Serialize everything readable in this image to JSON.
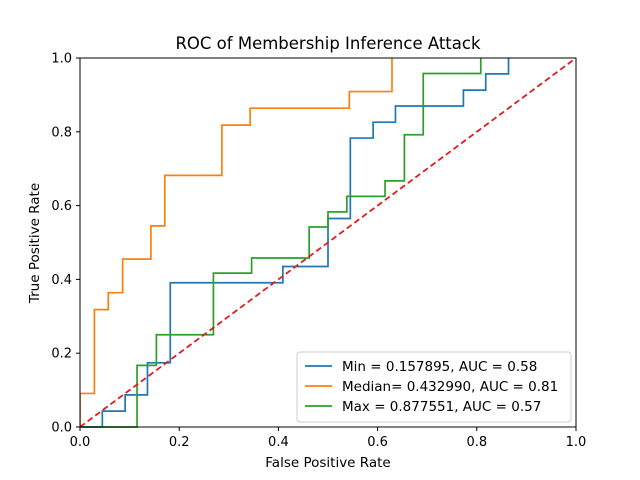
{
  "chart_data": {
    "type": "line",
    "title": "ROC of Membership Inference Attack",
    "xlabel": "False Positive Rate",
    "ylabel": "True Positive Rate",
    "xlim": [
      0.0,
      1.0
    ],
    "ylim": [
      0.0,
      1.0
    ],
    "xticks": [
      "0.0",
      "0.2",
      "0.4",
      "0.6",
      "0.8",
      "1.0"
    ],
    "yticks": [
      "0.0",
      "0.2",
      "0.4",
      "0.6",
      "0.8",
      "1.0"
    ],
    "grid": false,
    "legend_position": "lower-right",
    "series": [
      {
        "name": "Min = 0.157895, AUC = 0.58",
        "color": "#1f77b4",
        "x": [
          0.0,
          0.045,
          0.045,
          0.091,
          0.091,
          0.136,
          0.136,
          0.182,
          0.182,
          0.409,
          0.409,
          0.5,
          0.5,
          0.545,
          0.545,
          0.591,
          0.591,
          0.636,
          0.636,
          0.773,
          0.773,
          0.818,
          0.818,
          0.864,
          0.864
        ],
        "y": [
          0.0,
          0.0,
          0.043,
          0.043,
          0.087,
          0.087,
          0.174,
          0.174,
          0.391,
          0.391,
          0.435,
          0.435,
          0.565,
          0.565,
          0.783,
          0.783,
          0.826,
          0.826,
          0.87,
          0.87,
          0.913,
          0.913,
          0.957,
          0.957,
          1.0
        ]
      },
      {
        "name": "Median= 0.432990, AUC = 0.81",
        "color": "#ff7f0e",
        "x": [
          0.0,
          0.0,
          0.029,
          0.029,
          0.057,
          0.057,
          0.086,
          0.086,
          0.143,
          0.143,
          0.171,
          0.171,
          0.286,
          0.286,
          0.343,
          0.343,
          0.543,
          0.543,
          0.629,
          0.629
        ],
        "y": [
          0.0,
          0.091,
          0.091,
          0.318,
          0.318,
          0.364,
          0.364,
          0.455,
          0.455,
          0.545,
          0.545,
          0.682,
          0.682,
          0.818,
          0.818,
          0.864,
          0.864,
          0.909,
          0.909,
          1.0
        ]
      },
      {
        "name": "Max = 0.877551, AUC = 0.57",
        "color": "#2ca02c",
        "x": [
          0.0,
          0.115,
          0.115,
          0.154,
          0.154,
          0.269,
          0.269,
          0.346,
          0.346,
          0.462,
          0.462,
          0.5,
          0.5,
          0.538,
          0.538,
          0.615,
          0.615,
          0.654,
          0.654,
          0.692,
          0.692,
          0.808,
          0.808
        ],
        "y": [
          0.0,
          0.0,
          0.167,
          0.167,
          0.25,
          0.25,
          0.417,
          0.417,
          0.458,
          0.458,
          0.542,
          0.542,
          0.583,
          0.583,
          0.625,
          0.625,
          0.667,
          0.667,
          0.792,
          0.792,
          0.958,
          0.958,
          1.0
        ]
      }
    ],
    "reference_line": {
      "color": "#e41a1c",
      "style": "dashed",
      "x": [
        0.0,
        1.0
      ],
      "y": [
        0.0,
        1.0
      ]
    }
  }
}
